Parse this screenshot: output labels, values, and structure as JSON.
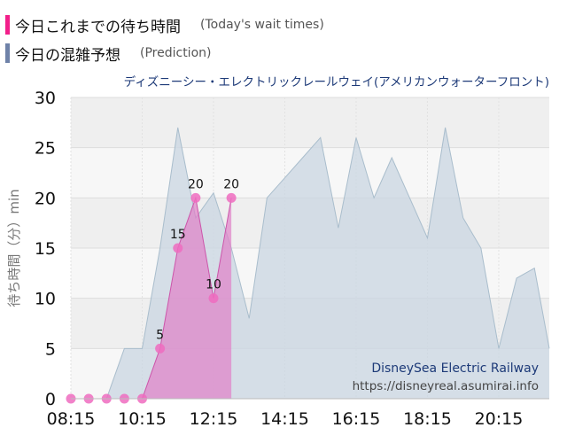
{
  "legend": {
    "today": {
      "label": "今日これまでの待ち時間",
      "sub": "(Today's wait times)",
      "color": "#f21f8a"
    },
    "prediction": {
      "label": "今日の混雑予想",
      "sub": "(Prediction)",
      "color": "#6f82a8"
    }
  },
  "chart_data": {
    "type": "area",
    "title": "ディズニーシー・エレクトリックレールウェイ(アメリカンウォーターフロント)",
    "ylabel": "待ち時間（分）min",
    "xlabel": "",
    "ylim": [
      0,
      30
    ],
    "yticks": [
      0,
      5,
      10,
      15,
      20,
      25,
      30
    ],
    "xticks": [
      "08:15",
      "10:15",
      "12:15",
      "14:15",
      "16:15",
      "18:15",
      "20:15"
    ],
    "grid": true,
    "legend_position": "top-left",
    "watermark": {
      "line1": "DisneySea Electric Railway",
      "line2": "https://disneyreal.asumirai.info"
    },
    "series": [
      {
        "key": "prediction",
        "color": "#c9d6e2",
        "stroke": "#a9bdcc",
        "points": [
          [
            "08:15",
            0
          ],
          [
            "08:45",
            0
          ],
          [
            "09:15",
            0
          ],
          [
            "09:45",
            5
          ],
          [
            "10:15",
            5
          ],
          [
            "10:45",
            15
          ],
          [
            "11:15",
            27
          ],
          [
            "11:45",
            18
          ],
          [
            "12:15",
            20.5
          ],
          [
            "12:45",
            15
          ],
          [
            "13:15",
            8
          ],
          [
            "13:45",
            20
          ],
          [
            "14:15",
            22
          ],
          [
            "14:45",
            24
          ],
          [
            "15:15",
            26
          ],
          [
            "15:45",
            17
          ],
          [
            "16:15",
            26
          ],
          [
            "16:45",
            20
          ],
          [
            "17:15",
            24
          ],
          [
            "17:45",
            20
          ],
          [
            "18:15",
            16
          ],
          [
            "18:45",
            27
          ],
          [
            "19:15",
            18
          ],
          [
            "19:45",
            15
          ],
          [
            "20:15",
            5
          ],
          [
            "20:45",
            12
          ],
          [
            "21:15",
            13
          ],
          [
            "21:40",
            5
          ]
        ]
      },
      {
        "key": "today",
        "color": "#e080c8",
        "stroke": "#cc55aa",
        "points": [
          [
            "08:15",
            0
          ],
          [
            "08:45",
            0
          ],
          [
            "09:15",
            0
          ],
          [
            "09:45",
            0
          ],
          [
            "10:15",
            0
          ],
          [
            "10:45",
            5
          ],
          [
            "11:15",
            15
          ],
          [
            "11:45",
            20
          ],
          [
            "12:15",
            10
          ],
          [
            "12:45",
            20
          ]
        ],
        "labels": [
          [
            "10:45",
            "5"
          ],
          [
            "11:15",
            "15"
          ],
          [
            "11:45",
            "20"
          ],
          [
            "12:15",
            "10"
          ],
          [
            "12:45",
            "20"
          ]
        ]
      }
    ]
  }
}
